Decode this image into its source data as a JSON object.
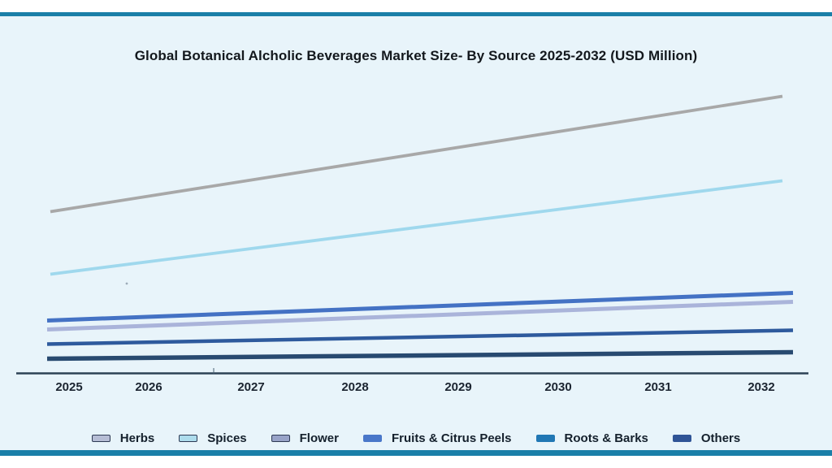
{
  "page": {
    "title": "Global Botanical Alcholic Beverages Market Size- By Source 2025-2032 (USD Million)",
    "background_color": "#ffffff",
    "panel_background_color": "#e8f4fa",
    "accent_bar_color": "#1a7fa8"
  },
  "chart_data": {
    "type": "line",
    "title": "Global Botanical Alcholic Beverages Market Size- By Source 2025-2032 (USD Million)",
    "categories": [
      "2025",
      "2026",
      "2027",
      "2028",
      "2029",
      "2030",
      "2031",
      "2032"
    ],
    "series": [
      {
        "name": "Flower",
        "color": "#a8a8a8",
        "width": 3.8,
        "values": [
          199,
          219,
          239,
          259,
          280,
          300,
          320,
          341
        ]
      },
      {
        "name": "Spices",
        "color": "#9fd8ed",
        "width": 3.8,
        "values": [
          122,
          138,
          154,
          171,
          187,
          204,
          220,
          237
        ]
      },
      {
        "name": "Fruits & Citrus Peels",
        "color": "#4472c4",
        "width": 5,
        "values": [
          65,
          70,
          74,
          79,
          84,
          89,
          94,
          99
        ]
      },
      {
        "name": "Herbs",
        "color": "#aab4da",
        "width": 5,
        "values": [
          54,
          59,
          63,
          68,
          73,
          78,
          83,
          88
        ]
      },
      {
        "name": "Roots & Barks",
        "color": "#2e5a9d",
        "width": 4.5,
        "values": [
          36,
          38,
          41,
          43,
          46,
          48,
          51,
          53
        ]
      },
      {
        "name": "Others",
        "color": "#284a70",
        "width": 5.5,
        "values": [
          18,
          19,
          20,
          21,
          22,
          23,
          24,
          26
        ]
      }
    ],
    "xlabel": "",
    "ylabel": "",
    "y_axis_labels_shown": false,
    "values_note": "y-axis is unlabeled in the image; values are relative magnitudes (USD Million implied), lines are straight/linear",
    "grid": false,
    "legend_position": "bottom"
  },
  "x_axis": {
    "labels": [
      "2025",
      "2026",
      "2027",
      "2028",
      "2029",
      "2030",
      "2031",
      "2032"
    ],
    "line_color": "#2c4255",
    "label_color": "#1b2430"
  },
  "legend": {
    "items": [
      {
        "label": "Herbs",
        "fill": "#b6bdd5",
        "border": "#2e3a54"
      },
      {
        "label": "Spices",
        "fill": "#addcec",
        "border": "#2e3a54"
      },
      {
        "label": "Flower",
        "fill": "#98a3c8",
        "border": "#2e3a54"
      },
      {
        "label": "Fruits & Citrus Peels",
        "fill": "#4977c9",
        "border": "#4977c9"
      },
      {
        "label": "Roots & Barks",
        "fill": "#2077b4",
        "border": "#2077b4"
      },
      {
        "label": "Others",
        "fill": "#2f5496",
        "border": "#2f5496"
      }
    ]
  }
}
